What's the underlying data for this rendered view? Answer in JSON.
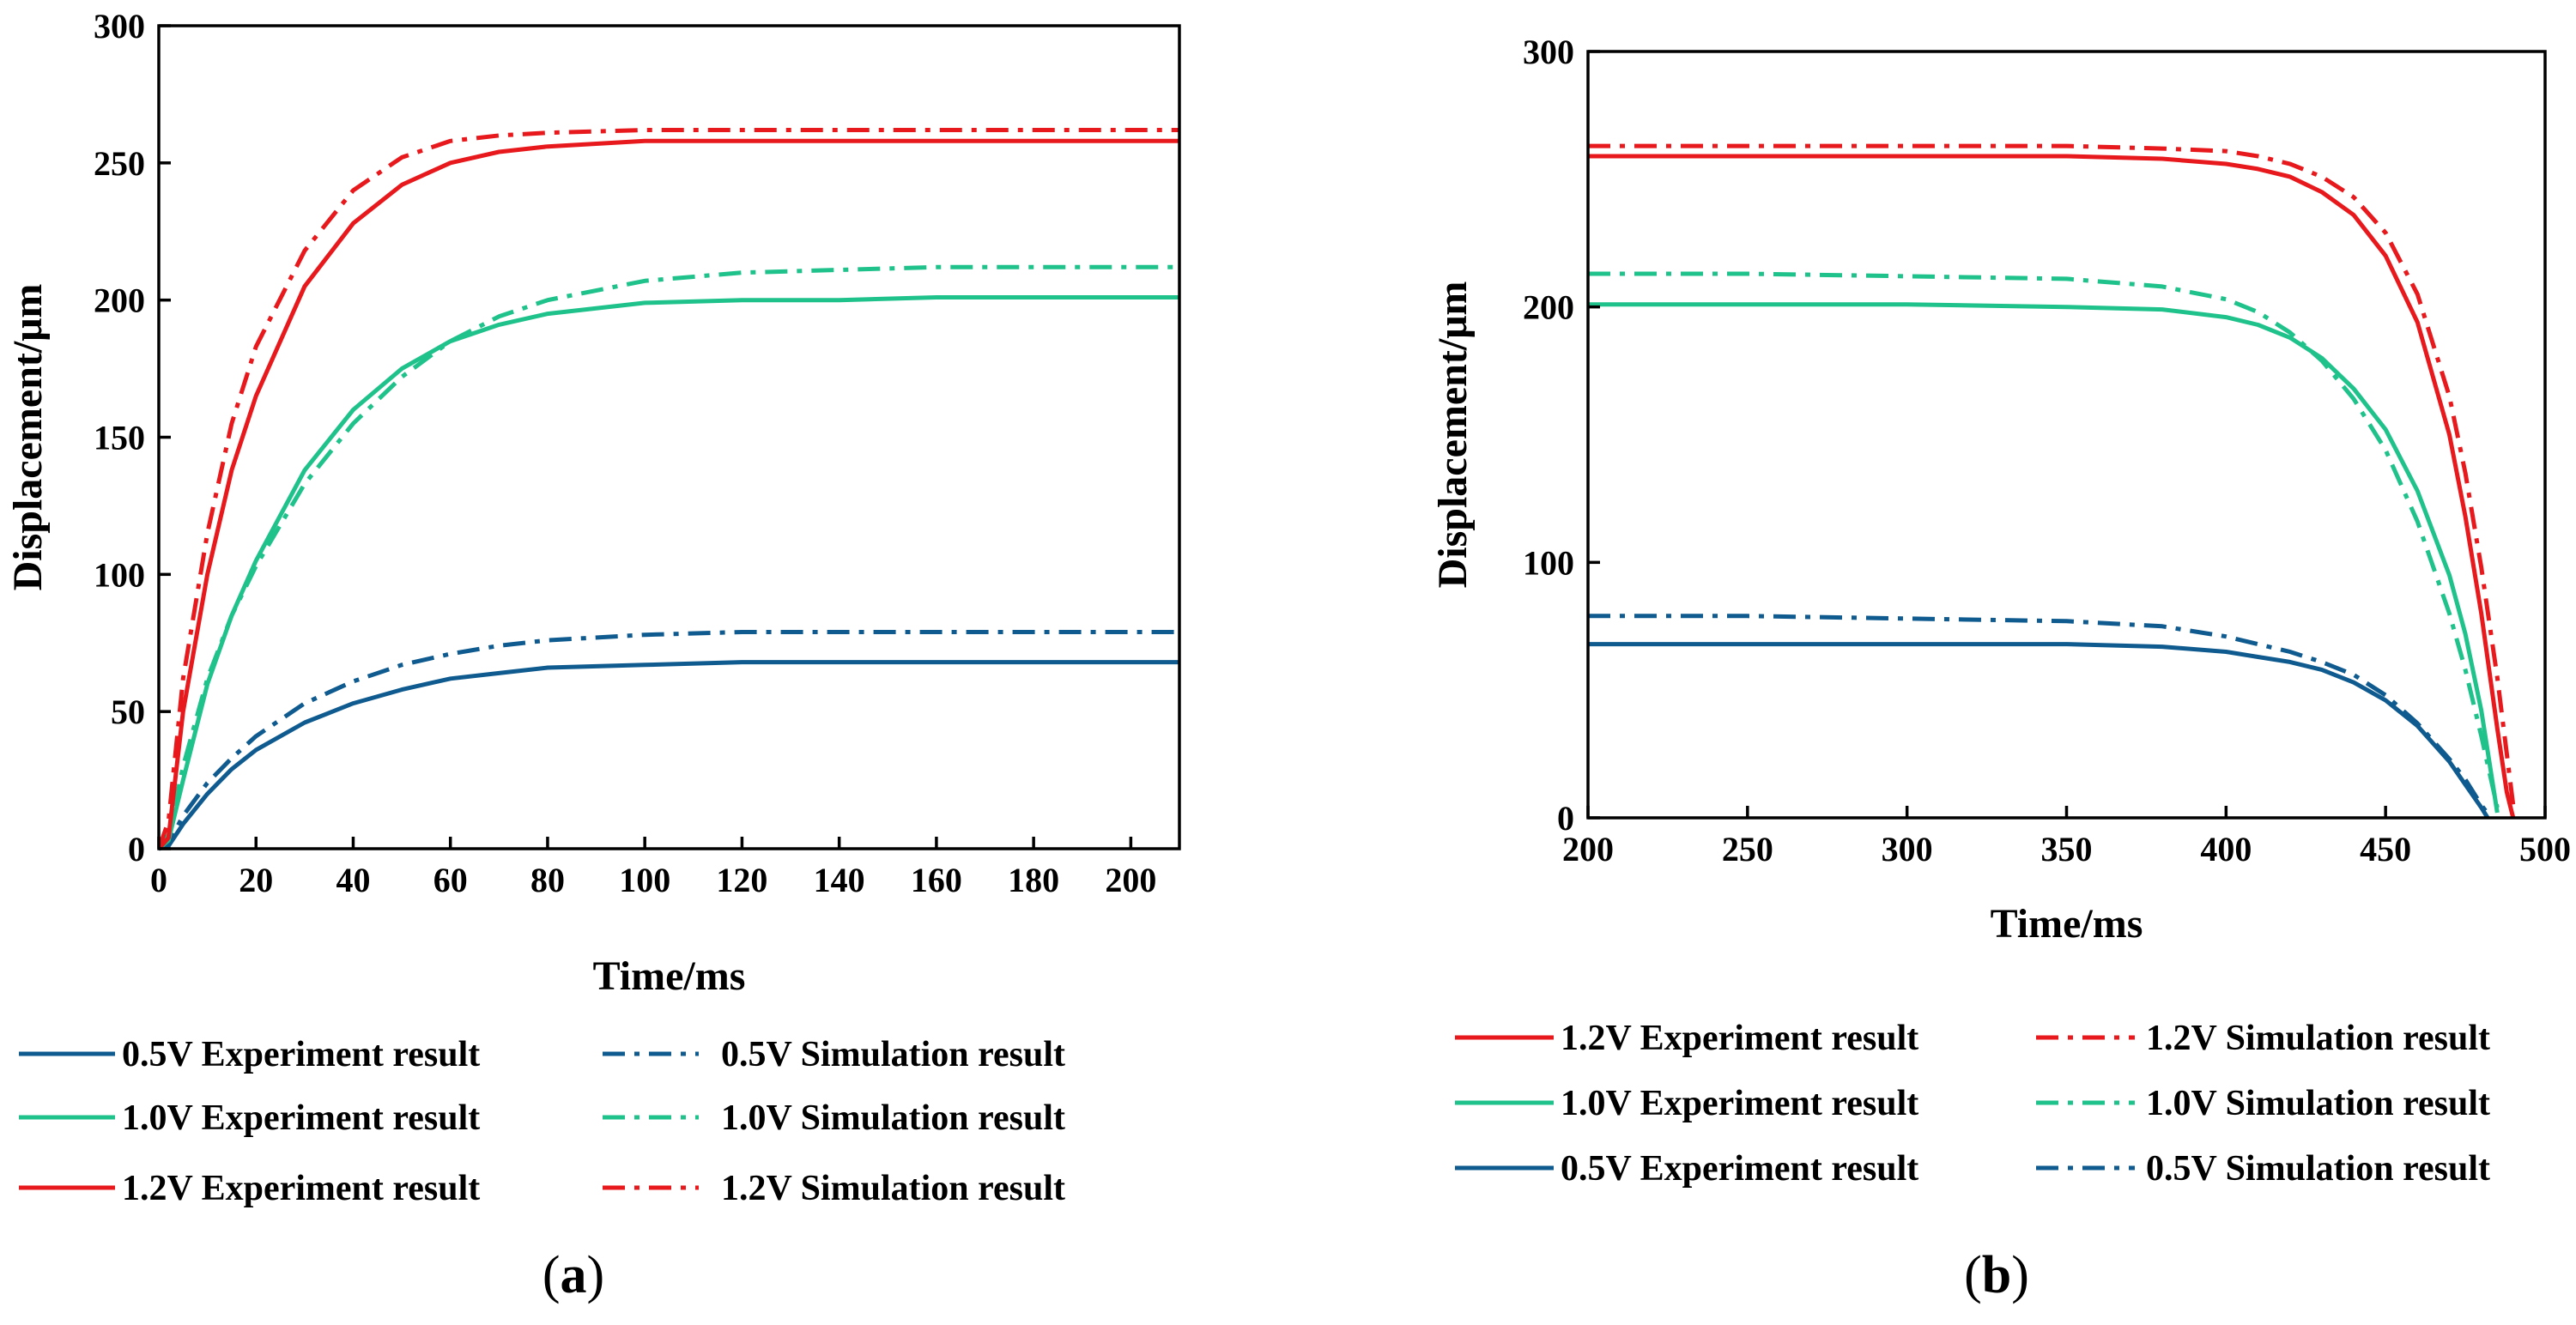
{
  "colors": {
    "blue": "#0f5b8f",
    "green": "#1fc28a",
    "red": "#e8191c",
    "axis": "#000000"
  },
  "chart_data": [
    {
      "id": "a",
      "type": "line",
      "caption": {
        "open": "(",
        "letter": "a",
        "close": ")"
      },
      "xlabel": "Time/ms",
      "ylabel": "Displacement/μm",
      "xlim": [
        0,
        210
      ],
      "ylim": [
        0,
        300
      ],
      "xticks": [
        0,
        20,
        40,
        60,
        80,
        100,
        120,
        140,
        160,
        180,
        200
      ],
      "yticks": [
        0,
        50,
        100,
        150,
        200,
        250,
        300
      ],
      "grid": false,
      "legend": {
        "placement": "below",
        "columns": 2
      },
      "series": [
        {
          "name": "0.5V Experiment result",
          "color": "blue",
          "style": "solid",
          "legend_col": 0,
          "legend_row": 0,
          "x": [
            0,
            2,
            5,
            10,
            15,
            20,
            30,
            40,
            50,
            60,
            70,
            80,
            100,
            120,
            140,
            160,
            180,
            200,
            210
          ],
          "y": [
            0,
            1,
            9,
            20,
            29,
            36,
            46,
            53,
            58,
            62,
            64,
            66,
            67,
            68,
            68,
            68,
            68,
            68,
            68
          ]
        },
        {
          "name": "0.5V Simulation result",
          "color": "blue",
          "style": "dashdot",
          "legend_col": 1,
          "legend_row": 0,
          "x": [
            0,
            2,
            5,
            10,
            15,
            20,
            30,
            40,
            50,
            60,
            70,
            80,
            100,
            120,
            140,
            160,
            180,
            200,
            210
          ],
          "y": [
            0,
            2,
            12,
            24,
            33,
            41,
            53,
            61,
            67,
            71,
            74,
            76,
            78,
            79,
            79,
            79,
            79,
            79,
            79
          ]
        },
        {
          "name": "1.0V Experiment result",
          "color": "green",
          "style": "solid",
          "legend_col": 0,
          "legend_row": 1,
          "x": [
            0,
            2,
            5,
            10,
            15,
            20,
            30,
            40,
            50,
            60,
            70,
            80,
            100,
            120,
            140,
            160,
            180,
            200,
            210
          ],
          "y": [
            0,
            3,
            25,
            60,
            85,
            105,
            138,
            160,
            175,
            185,
            191,
            195,
            199,
            200,
            200,
            201,
            201,
            201,
            201
          ]
        },
        {
          "name": "1.0V Simulation result",
          "color": "green",
          "style": "dashdot",
          "legend_col": 1,
          "legend_row": 1,
          "x": [
            0,
            2,
            5,
            10,
            15,
            20,
            30,
            40,
            50,
            60,
            70,
            80,
            100,
            120,
            140,
            160,
            180,
            200,
            210
          ],
          "y": [
            0,
            5,
            30,
            62,
            85,
            103,
            133,
            155,
            172,
            185,
            194,
            200,
            207,
            210,
            211,
            212,
            212,
            212,
            212
          ]
        },
        {
          "name": "1.2V Experiment result",
          "color": "red",
          "style": "solid",
          "legend_col": 0,
          "legend_row": 2,
          "x": [
            0,
            2,
            5,
            10,
            15,
            20,
            30,
            40,
            50,
            60,
            70,
            80,
            100,
            120,
            140,
            160,
            180,
            200,
            210
          ],
          "y": [
            0,
            4,
            50,
            100,
            138,
            165,
            205,
            228,
            242,
            250,
            254,
            256,
            258,
            258,
            258,
            258,
            258,
            258,
            258
          ]
        },
        {
          "name": "1.2V Simulation result",
          "color": "red",
          "style": "dashdot",
          "legend_col": 1,
          "legend_row": 2,
          "x": [
            0,
            2,
            5,
            10,
            15,
            20,
            30,
            40,
            50,
            60,
            70,
            80,
            100,
            120,
            140,
            160,
            180,
            200,
            210
          ],
          "y": [
            0,
            10,
            62,
            115,
            155,
            183,
            218,
            240,
            252,
            258,
            260,
            261,
            262,
            262,
            262,
            262,
            262,
            262,
            262
          ]
        }
      ]
    },
    {
      "id": "b",
      "type": "line",
      "caption": {
        "open": "(",
        "letter": "b",
        "close": ")"
      },
      "xlabel": "Time/ms",
      "ylabel": "Displacement/μm",
      "xlim": [
        200,
        500
      ],
      "ylim": [
        0,
        300
      ],
      "xticks": [
        200,
        250,
        300,
        350,
        400,
        450,
        500
      ],
      "yticks": [
        0,
        100,
        200,
        300
      ],
      "grid": false,
      "legend": {
        "placement": "below",
        "columns": 2
      },
      "series": [
        {
          "name": "1.2V Experiment result",
          "color": "red",
          "style": "solid",
          "legend_col": 0,
          "legend_row": 0,
          "x": [
            200,
            250,
            300,
            350,
            380,
            400,
            410,
            420,
            430,
            440,
            450,
            460,
            470,
            475,
            480,
            485,
            488,
            490
          ],
          "y": [
            259,
            259,
            259,
            259,
            258,
            256,
            254,
            251,
            245,
            236,
            220,
            194,
            150,
            118,
            80,
            35,
            10,
            0
          ]
        },
        {
          "name": "1.2V Simulation result",
          "color": "red",
          "style": "dashdot",
          "legend_col": 1,
          "legend_row": 0,
          "x": [
            200,
            250,
            300,
            350,
            380,
            400,
            410,
            420,
            430,
            440,
            450,
            460,
            470,
            475,
            480,
            485,
            488,
            490
          ],
          "y": [
            263,
            263,
            263,
            263,
            262,
            261,
            259,
            256,
            251,
            243,
            229,
            205,
            165,
            135,
            98,
            55,
            25,
            5
          ]
        },
        {
          "name": "1.0V Experiment result",
          "color": "green",
          "style": "solid",
          "legend_col": 0,
          "legend_row": 1,
          "x": [
            200,
            250,
            300,
            350,
            380,
            400,
            410,
            420,
            430,
            440,
            450,
            460,
            470,
            475,
            480,
            485
          ],
          "y": [
            201,
            201,
            201,
            200,
            199,
            196,
            193,
            188,
            180,
            168,
            152,
            128,
            95,
            72,
            42,
            2
          ]
        },
        {
          "name": "1.0V Simulation result",
          "color": "green",
          "style": "dashdot",
          "legend_col": 1,
          "legend_row": 1,
          "x": [
            200,
            250,
            300,
            350,
            380,
            400,
            410,
            420,
            430,
            440,
            450,
            460,
            470,
            475,
            480,
            485
          ],
          "y": [
            213,
            213,
            212,
            211,
            208,
            203,
            198,
            190,
            179,
            164,
            144,
            116,
            80,
            58,
            32,
            4
          ]
        },
        {
          "name": "0.5V Experiment result",
          "color": "blue",
          "style": "solid",
          "legend_col": 0,
          "legend_row": 2,
          "x": [
            200,
            250,
            300,
            350,
            380,
            400,
            410,
            420,
            430,
            440,
            450,
            460,
            470,
            475,
            480,
            482
          ],
          "y": [
            68,
            68,
            68,
            68,
            67,
            65,
            63,
            61,
            58,
            53,
            46,
            36,
            22,
            13,
            4,
            0
          ]
        },
        {
          "name": "0.5V Simulation result",
          "color": "blue",
          "style": "dashdot",
          "legend_col": 1,
          "legend_row": 2,
          "x": [
            200,
            250,
            300,
            350,
            380,
            400,
            410,
            420,
            430,
            440,
            450,
            460,
            470,
            475,
            480,
            483
          ],
          "y": [
            79,
            79,
            78,
            77,
            75,
            71,
            68,
            65,
            61,
            56,
            48,
            37,
            23,
            15,
            5,
            0
          ]
        }
      ]
    }
  ]
}
